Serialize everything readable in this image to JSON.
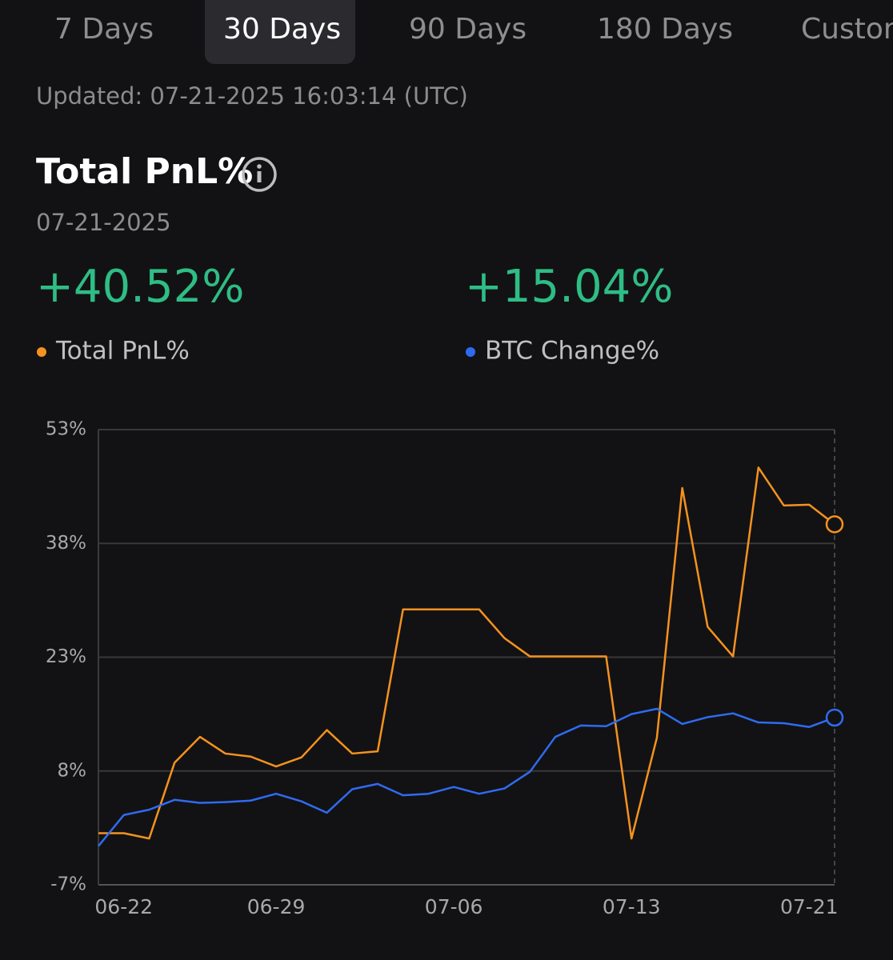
{
  "tabs": [
    "7 Days",
    "30 Days",
    "90 Days",
    "180 Days",
    "Custom"
  ],
  "selected_tab": 1,
  "updated": "Updated: 07-21-2025 16:03:14 (UTC)",
  "title": "Total PnL%",
  "date": "07-21-2025",
  "summary": [
    "+40.52%",
    "+15.04%"
  ],
  "chart_data": {
    "type": "line",
    "categories": [
      null,
      "06-22",
      null,
      null,
      null,
      null,
      null,
      "06-29",
      null,
      null,
      null,
      null,
      null,
      null,
      "07-06",
      null,
      null,
      null,
      null,
      null,
      null,
      "07-13",
      null,
      null,
      null,
      null,
      null,
      null,
      "07-21",
      null
    ],
    "series": [
      {
        "name": "Total PnL%",
        "color": "#f5921e",
        "values": [
          -0.2,
          -0.2,
          -0.9,
          9.1,
          12.5,
          10.3,
          9.9,
          8.6,
          9.8,
          13.4,
          10.3,
          10.6,
          29.3,
          29.3,
          29.3,
          29.3,
          25.5,
          23.1,
          23.1,
          23.1,
          23.1,
          -0.9,
          12.4,
          45.3,
          27.0,
          23.1,
          48.0,
          43.0,
          43.1,
          40.52
        ]
      },
      {
        "name": "BTC Change%",
        "color": "#2f6bf2",
        "values": [
          -1.9,
          2.2,
          2.9,
          4.2,
          3.8,
          3.9,
          4.1,
          5.0,
          4.0,
          2.5,
          5.6,
          6.3,
          4.8,
          5.0,
          5.9,
          5.0,
          5.7,
          7.9,
          12.5,
          14.0,
          13.9,
          15.5,
          16.2,
          14.2,
          15.1,
          15.6,
          14.4,
          14.3,
          13.8,
          15.04
        ]
      }
    ],
    "ylim": [
      -7,
      53
    ],
    "yticks": [
      {
        "value": -7,
        "label": "-7%"
      },
      {
        "value": 8,
        "label": "8%"
      },
      {
        "value": 23,
        "label": "23%"
      },
      {
        "value": 38,
        "label": "38%"
      },
      {
        "value": 53,
        "label": "53%"
      }
    ],
    "grid": true
  }
}
